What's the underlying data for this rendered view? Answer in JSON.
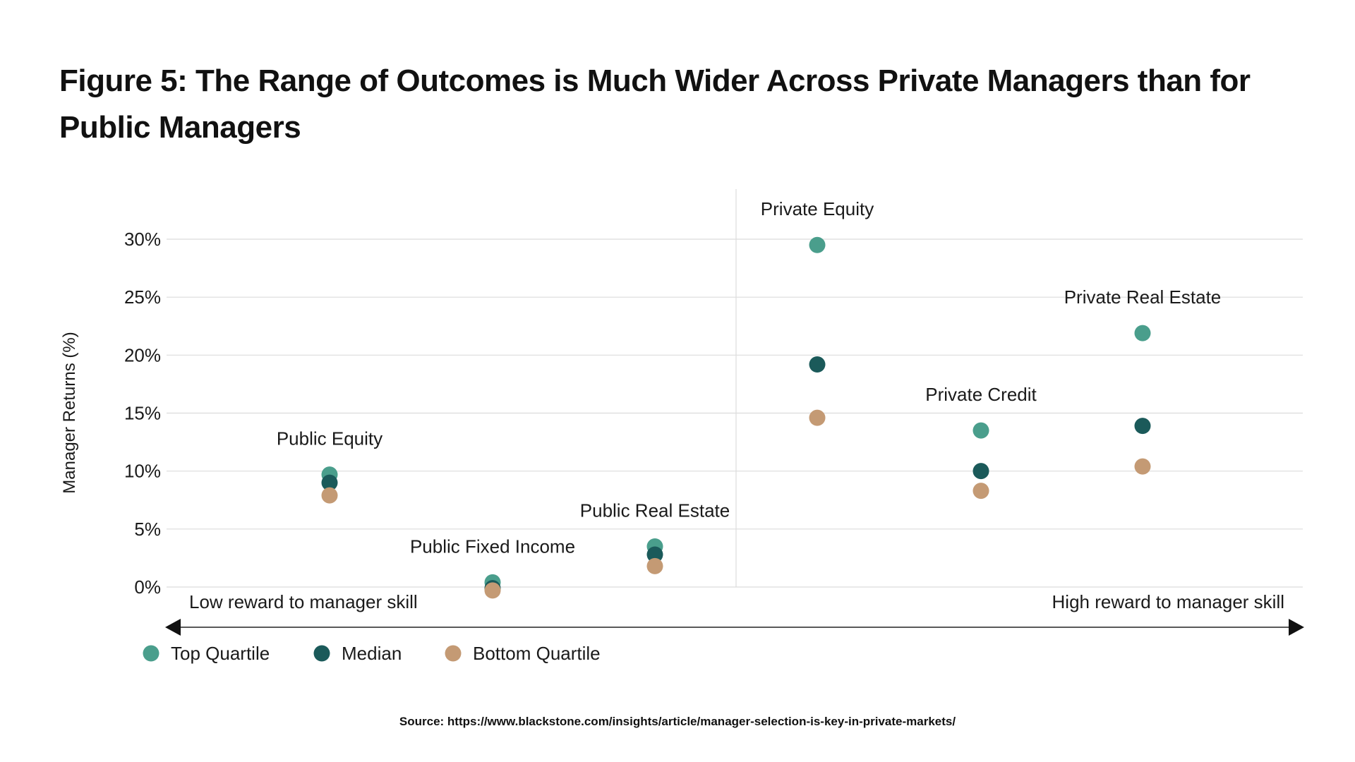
{
  "chart_data": {
    "type": "scatter",
    "title": "Figure 5: The Range of Outcomes is Much Wider Across Private Managers than for Public Managers",
    "ylabel": "Manager Returns (%)",
    "xlabel": "",
    "ylim": [
      0,
      30
    ],
    "yticks": [
      0,
      5,
      10,
      15,
      20,
      25,
      30
    ],
    "ytick_labels": [
      "0%",
      "5%",
      "10%",
      "15%",
      "20%",
      "25%",
      "30%"
    ],
    "grid": true,
    "x_axis_low_label": "Low reward to manager skill",
    "x_axis_high_label": "High reward to manager skill",
    "categories": [
      "Public Equity",
      "Public Fixed Income",
      "Public Real Estate",
      "Private Equity",
      "Private Credit",
      "Private Real Estate"
    ],
    "series": [
      {
        "name": "Top Quartile",
        "color": "#4a9e8c",
        "values": [
          9.7,
          0.4,
          3.5,
          29.5,
          13.5,
          21.9
        ]
      },
      {
        "name": "Median",
        "color": "#1b5a5a",
        "values": [
          9.0,
          -0.1,
          2.8,
          19.2,
          10.0,
          13.9
        ]
      },
      {
        "name": "Bottom Quartile",
        "color": "#c49a74",
        "values": [
          7.9,
          -0.3,
          1.8,
          14.6,
          8.3,
          10.4
        ]
      }
    ],
    "legend_position": "bottom-left"
  },
  "source": "Source: https://www.blackstone.com/insights/article/manager-selection-is-key-in-private-markets/"
}
